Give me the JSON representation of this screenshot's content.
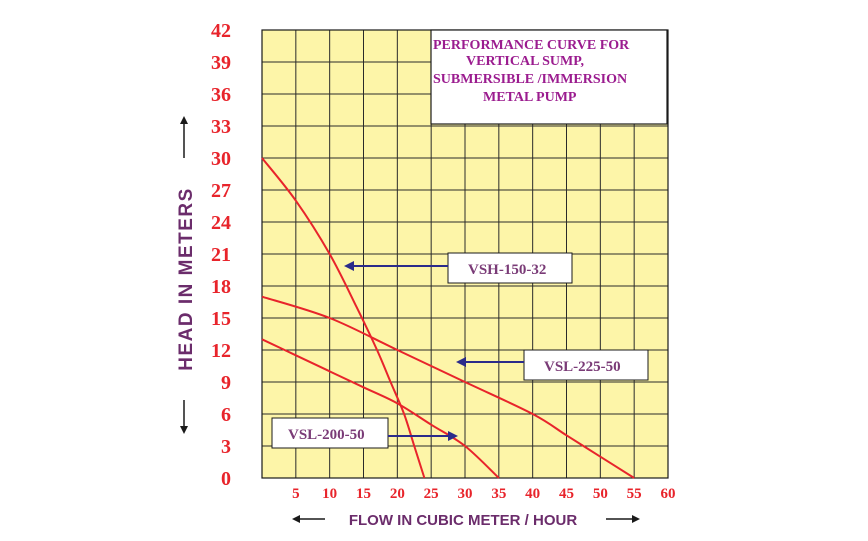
{
  "chart_data": {
    "type": "line",
    "title_lines": [
      "PERFORMANCE CURVE FOR",
      "VERTICAL  SUMP,",
      "SUBMERSIBLE /IMMERSION",
      "METAL PUMP"
    ],
    "xlabel": "FLOW IN CUBIC METER / HOUR",
    "ylabel": "HEAD IN METERS",
    "xlim": [
      0,
      60
    ],
    "ylim": [
      0,
      42
    ],
    "xticks": [
      5,
      10,
      15,
      20,
      25,
      30,
      35,
      40,
      45,
      50,
      55,
      60
    ],
    "yticks": [
      0,
      3,
      6,
      9,
      12,
      15,
      18,
      21,
      24,
      27,
      30,
      33,
      36,
      39,
      42
    ],
    "grid": true,
    "colors": {
      "plot_bg": "#fdf5a8",
      "grid": "#2a2a2a",
      "curve": "#e8242b",
      "tick_text": "#e8242b",
      "arrow": "#2b2b8a",
      "axis_label": "#6b2c6b",
      "title": "#9b1c8f"
    },
    "series": [
      {
        "name": "VSH-150-32",
        "x": [
          0,
          5,
          10,
          14,
          17,
          19,
          21,
          22.5,
          24
        ],
        "y": [
          30,
          26,
          21,
          16,
          12,
          9,
          6,
          3,
          0
        ]
      },
      {
        "name": "VSL-225-50",
        "x": [
          0,
          10,
          20,
          30,
          40,
          45,
          50,
          55
        ],
        "y": [
          17,
          15,
          12,
          9,
          6,
          4,
          2,
          0
        ]
      },
      {
        "name": "VSL-200-50",
        "x": [
          0,
          5,
          10,
          15,
          20,
          25,
          30,
          35
        ],
        "y": [
          13,
          11.5,
          10,
          8.5,
          7,
          5,
          3,
          0
        ]
      }
    ]
  }
}
